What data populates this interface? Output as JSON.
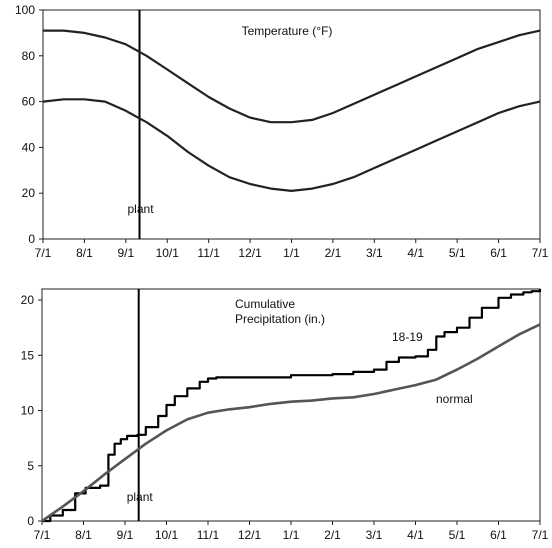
{
  "chart_data": [
    {
      "type": "line",
      "title": "Temperature  (°F)",
      "x_ticks": [
        "7/1",
        "8/1",
        "9/1",
        "10/1",
        "11/1",
        "12/1",
        "1/1",
        "2/1",
        "3/1",
        "4/1",
        "5/1",
        "6/1",
        "7/1"
      ],
      "ylim": [
        0,
        100
      ],
      "y_ticks": [
        0,
        20,
        40,
        60,
        80,
        100
      ],
      "annotation": {
        "label": "plant",
        "at_month": 2.33
      },
      "series": [
        {
          "role": "normal-high",
          "x": [
            0,
            0.5,
            1,
            1.5,
            2,
            2.5,
            3,
            3.5,
            4,
            4.5,
            5,
            5.5,
            6,
            6.5,
            7,
            7.5,
            8,
            8.5,
            9,
            9.5,
            10,
            10.5,
            11,
            11.5,
            12
          ],
          "values": [
            91,
            91,
            90,
            88,
            85,
            80,
            74,
            68,
            62,
            57,
            53,
            51,
            51,
            52,
            55,
            59,
            63,
            67,
            71,
            75,
            79,
            83,
            86,
            89,
            91
          ]
        },
        {
          "role": "normal-low",
          "x": [
            0,
            0.5,
            1,
            1.5,
            2,
            2.5,
            3,
            3.5,
            4,
            4.5,
            5,
            5.5,
            6,
            6.5,
            7,
            7.5,
            8,
            8.5,
            9,
            9.5,
            10,
            10.5,
            11,
            11.5,
            12
          ],
          "values": [
            60,
            61,
            61,
            60,
            56,
            51,
            45,
            38,
            32,
            27,
            24,
            22,
            21,
            22,
            24,
            27,
            31,
            35,
            39,
            43,
            47,
            51,
            55,
            58,
            60
          ]
        }
      ]
    },
    {
      "type": "line",
      "title": "Cumulative Precipitation (in.)",
      "x_ticks": [
        "7/1",
        "8/1",
        "9/1",
        "10/1",
        "11/1",
        "12/1",
        "1/1",
        "2/1",
        "3/1",
        "4/1",
        "5/1",
        "6/1",
        "7/1"
      ],
      "ylim": [
        0,
        21
      ],
      "y_ticks": [
        0,
        5,
        10,
        15,
        20
      ],
      "annotation": {
        "label": "plant",
        "at_month": 2.33
      },
      "series": [
        {
          "name": "18-19",
          "step": true,
          "x": [
            0,
            0.2,
            0.5,
            0.8,
            1.05,
            1.4,
            1.6,
            1.75,
            1.9,
            2.05,
            2.3,
            2.5,
            2.8,
            3.0,
            3.2,
            3.5,
            3.8,
            4.0,
            4.2,
            4.4,
            4.6,
            5.0,
            6.0,
            7.0,
            7.5,
            8.0,
            8.3,
            8.6,
            9.0,
            9.3,
            9.5,
            9.7,
            10.0,
            10.3,
            10.6,
            11.0,
            11.3,
            11.6,
            11.8,
            12.0
          ],
          "values": [
            0,
            0.5,
            1,
            2.5,
            3,
            3.2,
            6,
            7,
            7.4,
            7.7,
            7.8,
            8.5,
            9.5,
            10.5,
            11.3,
            12,
            12.6,
            12.9,
            13,
            13,
            13,
            13,
            13.2,
            13.3,
            13.5,
            13.7,
            14.4,
            14.8,
            14.9,
            15.5,
            16.7,
            17.1,
            17.5,
            18.4,
            19.3,
            20.2,
            20.5,
            20.7,
            20.8,
            21
          ]
        },
        {
          "name": "normal",
          "x": [
            0,
            0.5,
            1,
            1.5,
            2,
            2.5,
            3,
            3.5,
            4,
            4.5,
            5,
            5.5,
            6,
            6.5,
            7,
            7.5,
            8,
            8.5,
            9,
            9.5,
            10,
            10.5,
            11,
            11.5,
            12
          ],
          "values": [
            0,
            1.3,
            2.7,
            4.2,
            5.6,
            7.0,
            8.2,
            9.2,
            9.8,
            10.1,
            10.3,
            10.6,
            10.8,
            10.9,
            11.1,
            11.2,
            11.5,
            11.9,
            12.3,
            12.8,
            13.7,
            14.7,
            15.8,
            16.9,
            17.8
          ]
        }
      ]
    }
  ]
}
